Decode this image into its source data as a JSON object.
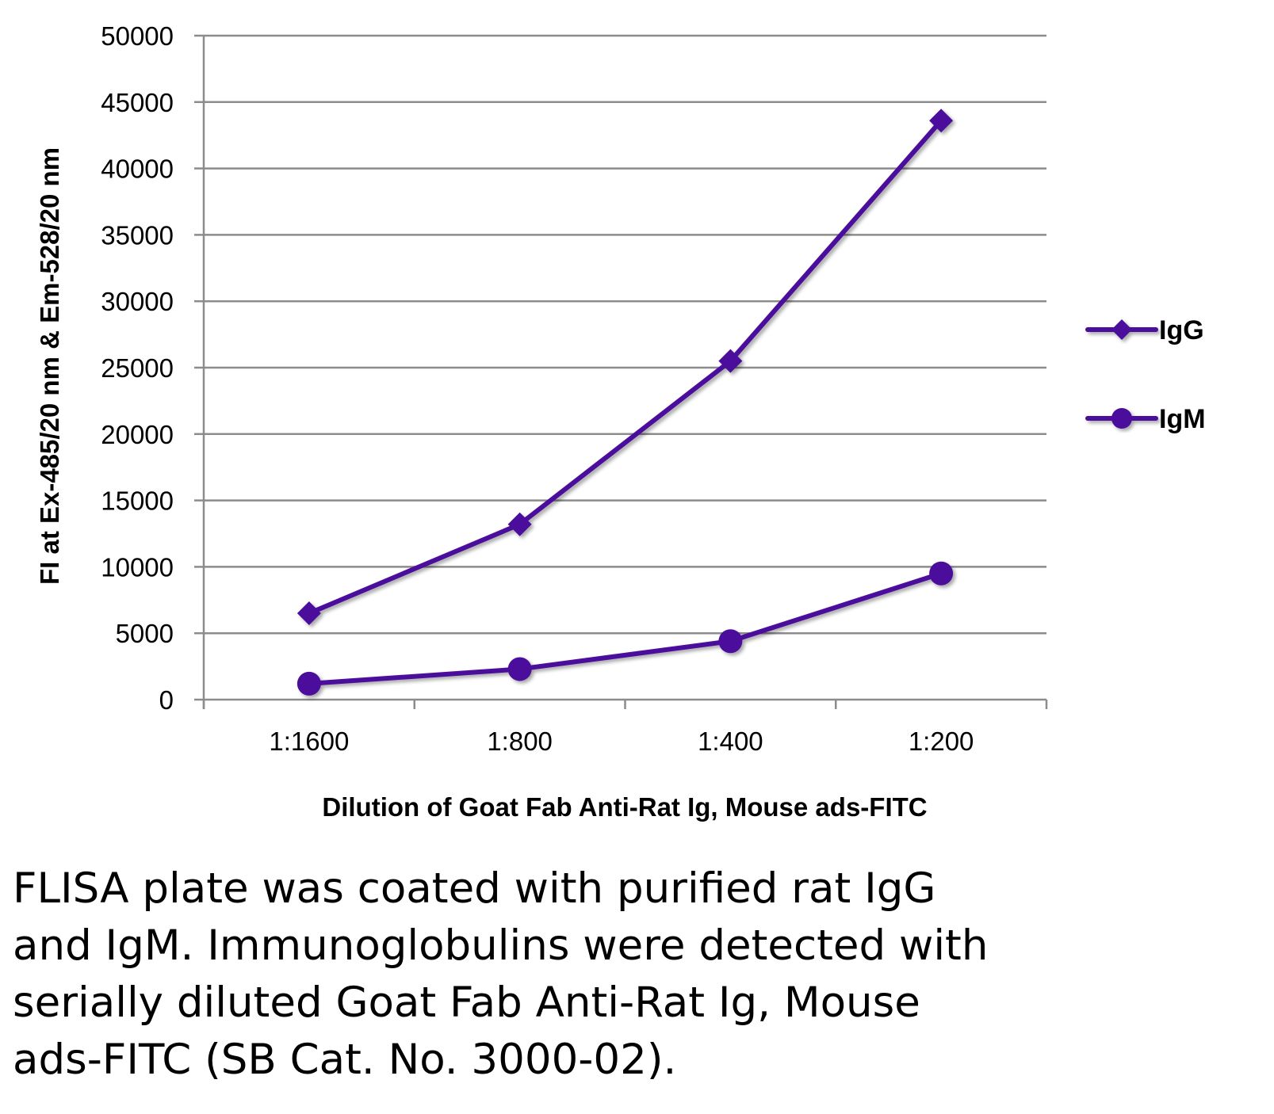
{
  "chart_data": {
    "type": "line",
    "categories": [
      "1:1600",
      "1:800",
      "1:400",
      "1:200"
    ],
    "series": [
      {
        "name": "IgG",
        "marker": "diamond",
        "values": [
          6500,
          13200,
          25500,
          43600
        ]
      },
      {
        "name": "IgM",
        "marker": "circle",
        "values": [
          1200,
          2300,
          4400,
          9500
        ]
      }
    ],
    "title": "",
    "xlabel": "Dilution of Goat Fab Anti-Rat Ig, Mouse ads-FITC",
    "ylabel": "FI at Ex-485/20 nm & Em-528/20 nm",
    "ylim": [
      0,
      50000
    ],
    "ytick_step": 5000,
    "grid": "horizontal",
    "legend_position": "right",
    "color": "#4b0e9c"
  },
  "caption": {
    "lines": [
      "FLISA plate was coated with purified rat IgG",
      "and IgM.  Immunoglobulins were detected with",
      "serially diluted Goat Fab Anti-Rat Ig, Mouse",
      "ads-FITC (SB Cat. No. 3000-02)."
    ]
  }
}
